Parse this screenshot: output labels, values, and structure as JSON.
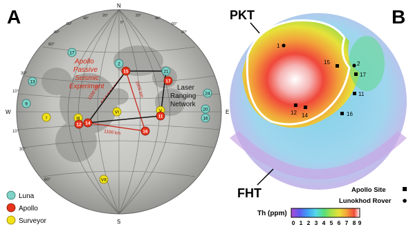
{
  "panel_a": {
    "label": "A",
    "compass": {
      "n": "N",
      "s": "S",
      "w": "W",
      "e": "E"
    },
    "lat_ticks": [
      "60°",
      "30°",
      "10°",
      "10°",
      "30°",
      "60°"
    ],
    "lon_ticks": [
      "0°",
      "80°",
      "60°",
      "40°",
      "20°",
      "20°",
      "40°",
      "60°",
      "80°"
    ],
    "annotations": {
      "passive_seismic": [
        "Apollo",
        "Passive",
        "Seismic",
        "Experiment"
      ],
      "laser_ranging": [
        "Laser",
        "Ranging",
        "Network"
      ],
      "line_dists": [
        "1100 km",
        "1000 km",
        "1100 km"
      ]
    },
    "luna_sites": [
      "17",
      "13",
      "9",
      "2",
      "21",
      "24",
      "20",
      "16"
    ],
    "apollo_sites": [
      "12",
      "17",
      "15",
      "11",
      "14",
      "16"
    ],
    "surveyor_sites": [
      "I",
      "III",
      "VI",
      "V",
      "VII"
    ],
    "legend": [
      {
        "label": "Luna",
        "color": "#7fd3c8"
      },
      {
        "label": "Apollo",
        "color": "#e8341c"
      },
      {
        "label": "Surveyor",
        "color": "#f2e21a"
      }
    ]
  },
  "panel_b": {
    "label": "B",
    "region_labels": {
      "pkt": "PKT",
      "fht": "FHT"
    },
    "apollo_labels": [
      "15",
      "17",
      "11",
      "16",
      "12",
      "14"
    ],
    "lunokhod_labels": [
      "1",
      "2"
    ],
    "legend": {
      "apollo_site": "Apollo Site",
      "lunokhod": "Lunokhod Rover"
    },
    "colorbar": {
      "title": "Th (ppm)",
      "ticks": [
        "0",
        "1",
        "2",
        "3",
        "4",
        "5",
        "6",
        "7",
        "8",
        "9"
      ],
      "colors": [
        "#b04fd6",
        "#5f5bf0",
        "#3fa0f5",
        "#55d8e8",
        "#55e07a",
        "#a6e24a",
        "#e8e03a",
        "#f5a83a",
        "#f04a3a",
        "#ffffff"
      ]
    }
  }
}
